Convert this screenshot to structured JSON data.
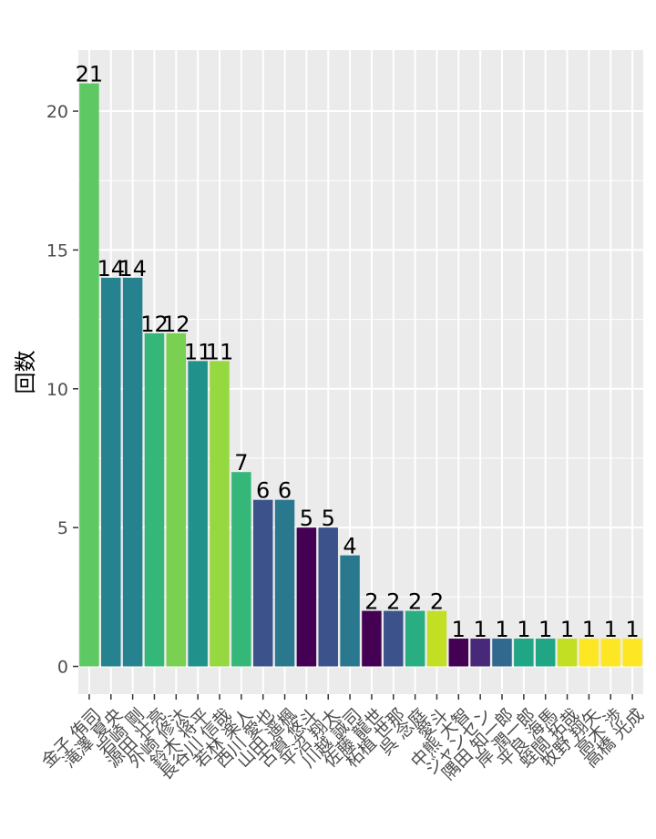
{
  "chart_data": {
    "type": "bar",
    "ylabel": "回数",
    "xlabel": "",
    "ylim": [
      -1,
      22.2
    ],
    "yticks": [
      0,
      5,
      10,
      15,
      20
    ],
    "grid": true,
    "legend": "none",
    "categories": [
      "金子 侑司",
      "滝澤 夏央",
      "岩崎 剛",
      "源田 壮亮",
      "外崎 修汰",
      "鈴木 将平",
      "長谷川 信哉",
      "若林 楽人",
      "西川 愛也",
      "山田 遥楓",
      "古賀 悠斗",
      "平沼 翔太",
      "川越 誠司",
      "佐藤 龍世",
      "柘植 世那",
      "呉 念庭",
      "愛斗",
      "中熊 大智",
      "ジャンセン",
      "隅田 知一郎",
      "岸 潤一郎",
      "平良 海馬",
      "蛭間 拓哉",
      "牧野 翔矢",
      "高木 渉",
      "高橋 光成"
    ],
    "values": [
      21,
      14,
      14,
      12,
      12,
      11,
      11,
      7,
      6,
      6,
      5,
      5,
      4,
      2,
      2,
      2,
      2,
      1,
      1,
      1,
      1,
      1,
      1,
      1,
      1,
      1
    ],
    "colors": [
      "#5ec962",
      "#26828e",
      "#26828e",
      "#35b779",
      "#7ad151",
      "#21918c",
      "#95d840",
      "#35b779",
      "#3b528b",
      "#2a788e",
      "#440154",
      "#3b528b",
      "#2a788e",
      "#440154",
      "#3b528b",
      "#28ae80",
      "#c2df23",
      "#440154",
      "#482878",
      "#31688e",
      "#21a685",
      "#21a685",
      "#c2df23",
      "#fde725",
      "#fde725",
      "#fde725"
    ]
  }
}
